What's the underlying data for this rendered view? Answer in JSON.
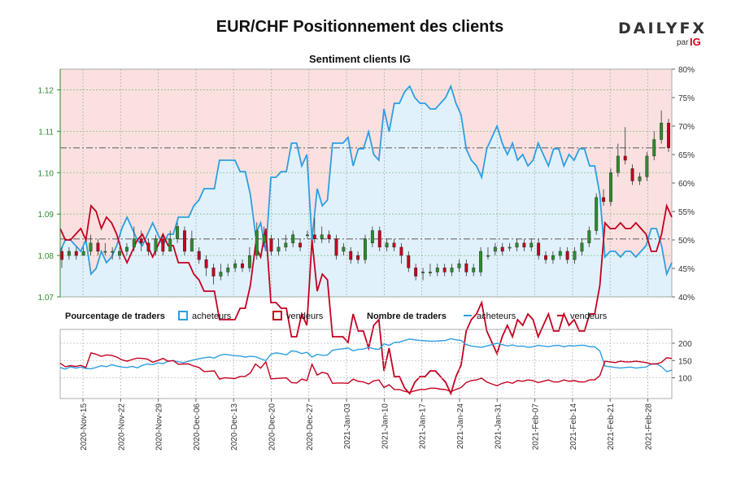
{
  "title": "EUR/CHF Positionnement des clients",
  "subtitle": "Sentiment clients IG",
  "logo": {
    "brand_main": "DAILY",
    "brand_accent": "FX",
    "by": "par",
    "ig": "IG"
  },
  "colors": {
    "buyers": "#2d9fe0",
    "sellers": "#c40020",
    "buyers_fill": "#e1f1fb",
    "sellers_fill": "#fbe0e0",
    "candle_up": "#2e8b2e",
    "candle_down": "#c40020",
    "price_axis": "#2e8b2e",
    "grid": "#7fbf7f"
  },
  "legend": {
    "pct_title": "Pourcentage de traders",
    "pct_buyers": "acheteurs",
    "pct_sellers": "vendeurs",
    "count_title": "Nombre de traders",
    "count_buyers": "acheteurs",
    "count_sellers": "vendeurs"
  },
  "chart_data": {
    "type": "line",
    "price_axis": {
      "ticks": [
        "1.07",
        "1.08",
        "1.09",
        "1.10",
        "1.11",
        "1.12"
      ],
      "range": [
        1.07,
        1.125
      ]
    },
    "pct_axis": {
      "ticks": [
        "40%",
        "45%",
        "50%",
        "55%",
        "60%",
        "65%",
        "70%",
        "75%",
        "80%"
      ],
      "range": [
        40,
        80
      ]
    },
    "count_axis": {
      "ticks": [
        "100",
        "150",
        "200"
      ],
      "range": [
        40,
        240
      ]
    },
    "date_ticks": [
      "2020-Nov-15",
      "2020-Nov-22",
      "2020-Nov-29",
      "2020-Dec-06",
      "2020-Dec-13",
      "2020-Dec-20",
      "2020-Dec-27",
      "2021-Jan-03",
      "2021-Jan-10",
      "2021-Jan-17",
      "2021-Jan-24",
      "2021-Jan-31",
      "2021-Feb-07",
      "2021-Feb-14",
      "2021-Feb-21",
      "2021-Feb-28"
    ],
    "price_reference_lines": [
      1.106,
      1.084
    ],
    "candles": [
      [
        1.081,
        1.079,
        1.082,
        1.077
      ],
      [
        1.08,
        1.081,
        1.082,
        1.079
      ],
      [
        1.081,
        1.08,
        1.082,
        1.079
      ],
      [
        1.08,
        1.081,
        1.082,
        1.08
      ],
      [
        1.081,
        1.083,
        1.085,
        1.08
      ],
      [
        1.083,
        1.081,
        1.084,
        1.08
      ],
      [
        1.081,
        1.081,
        1.083,
        1.08
      ],
      [
        1.081,
        1.081,
        1.082,
        1.079
      ],
      [
        1.08,
        1.081,
        1.082,
        1.079
      ],
      [
        1.081,
        1.082,
        1.083,
        1.08
      ],
      [
        1.082,
        1.084,
        1.087,
        1.081
      ],
      [
        1.084,
        1.083,
        1.086,
        1.081
      ],
      [
        1.083,
        1.081,
        1.084,
        1.08
      ],
      [
        1.081,
        1.084,
        1.085,
        1.08
      ],
      [
        1.084,
        1.081,
        1.085,
        1.08
      ],
      [
        1.081,
        1.084,
        1.086,
        1.081
      ],
      [
        1.084,
        1.087,
        1.088,
        1.083
      ],
      [
        1.086,
        1.081,
        1.087,
        1.08
      ],
      [
        1.081,
        1.084,
        1.086,
        1.081
      ],
      [
        1.081,
        1.079,
        1.082,
        1.078
      ],
      [
        1.079,
        1.077,
        1.08,
        1.075
      ],
      [
        1.077,
        1.075,
        1.078,
        1.073
      ],
      [
        1.075,
        1.076,
        1.078,
        1.074
      ],
      [
        1.076,
        1.077,
        1.078,
        1.075
      ],
      [
        1.077,
        1.078,
        1.079,
        1.076
      ],
      [
        1.078,
        1.077,
        1.079,
        1.076
      ],
      [
        1.077,
        1.08,
        1.082,
        1.076
      ],
      [
        1.08,
        1.086,
        1.088,
        1.079
      ],
      [
        1.083,
        1.085,
        1.087,
        1.082
      ],
      [
        1.084,
        1.081,
        1.085,
        1.08
      ],
      [
        1.081,
        1.082,
        1.084,
        1.08
      ],
      [
        1.082,
        1.083,
        1.085,
        1.081
      ],
      [
        1.083,
        1.085,
        1.086,
        1.082
      ],
      [
        1.083,
        1.082,
        1.084,
        1.081
      ],
      [
        1.085,
        1.085,
        1.086,
        1.084
      ],
      [
        1.085,
        1.084,
        1.089,
        1.083
      ],
      [
        1.084,
        1.085,
        1.087,
        1.083
      ],
      [
        1.085,
        1.084,
        1.086,
        1.083
      ],
      [
        1.084,
        1.08,
        1.085,
        1.079
      ],
      [
        1.081,
        1.082,
        1.083,
        1.08
      ],
      [
        1.081,
        1.079,
        1.082,
        1.078
      ],
      [
        1.08,
        1.079,
        1.081,
        1.078
      ],
      [
        1.079,
        1.084,
        1.085,
        1.078
      ],
      [
        1.083,
        1.086,
        1.087,
        1.082
      ],
      [
        1.086,
        1.082,
        1.087,
        1.081
      ],
      [
        1.082,
        1.083,
        1.084,
        1.081
      ],
      [
        1.083,
        1.082,
        1.084,
        1.081
      ],
      [
        1.082,
        1.08,
        1.083,
        1.078
      ],
      [
        1.08,
        1.077,
        1.081,
        1.076
      ],
      [
        1.077,
        1.075,
        1.078,
        1.074
      ],
      [
        1.076,
        1.076,
        1.077,
        1.074
      ],
      [
        1.076,
        1.076,
        1.078,
        1.075
      ],
      [
        1.076,
        1.077,
        1.078,
        1.075
      ],
      [
        1.077,
        1.076,
        1.078,
        1.075
      ],
      [
        1.076,
        1.077,
        1.078,
        1.075
      ],
      [
        1.077,
        1.078,
        1.079,
        1.076
      ],
      [
        1.078,
        1.076,
        1.079,
        1.075
      ],
      [
        1.076,
        1.077,
        1.078,
        1.075
      ],
      [
        1.076,
        1.081,
        1.082,
        1.075
      ],
      [
        1.08,
        1.08,
        1.082,
        1.079
      ],
      [
        1.081,
        1.082,
        1.083,
        1.08
      ],
      [
        1.082,
        1.081,
        1.083,
        1.08
      ],
      [
        1.082,
        1.082,
        1.083,
        1.081
      ],
      [
        1.082,
        1.083,
        1.084,
        1.081
      ],
      [
        1.083,
        1.082,
        1.084,
        1.081
      ],
      [
        1.082,
        1.083,
        1.084,
        1.081
      ],
      [
        1.083,
        1.08,
        1.084,
        1.079
      ],
      [
        1.08,
        1.079,
        1.081,
        1.078
      ],
      [
        1.079,
        1.08,
        1.081,
        1.078
      ],
      [
        1.08,
        1.081,
        1.082,
        1.079
      ],
      [
        1.081,
        1.079,
        1.082,
        1.078
      ],
      [
        1.079,
        1.081,
        1.082,
        1.078
      ],
      [
        1.081,
        1.083,
        1.084,
        1.08
      ],
      [
        1.083,
        1.086,
        1.087,
        1.082
      ],
      [
        1.086,
        1.094,
        1.095,
        1.085
      ],
      [
        1.094,
        1.093,
        1.096,
        1.092
      ],
      [
        1.093,
        1.1,
        1.101,
        1.092
      ],
      [
        1.1,
        1.104,
        1.107,
        1.099
      ],
      [
        1.104,
        1.103,
        1.111,
        1.102
      ],
      [
        1.101,
        1.098,
        1.102,
        1.097
      ],
      [
        1.098,
        1.099,
        1.1,
        1.097
      ],
      [
        1.099,
        1.104,
        1.105,
        1.098
      ],
      [
        1.104,
        1.108,
        1.11,
        1.103
      ],
      [
        1.108,
        1.112,
        1.115,
        1.107
      ],
      [
        1.112,
        1.106,
        1.113,
        1.105
      ]
    ],
    "buyers_pct": [
      48,
      50,
      50,
      49,
      48,
      50,
      44,
      45,
      48,
      46,
      47,
      49,
      52,
      54,
      52,
      50,
      49,
      51,
      53,
      51,
      49,
      51,
      51,
      54,
      54,
      54,
      56,
      57,
      59,
      59,
      59,
      64,
      64,
      64,
      64,
      62,
      62,
      58,
      51,
      53,
      48,
      61,
      61,
      62,
      62,
      67,
      67,
      63,
      65,
      50,
      59,
      56,
      57,
      67,
      67,
      67,
      68,
      63,
      66,
      66,
      69,
      65,
      64,
      73,
      69,
      74,
      74,
      76,
      77,
      75,
      74,
      74,
      73,
      73,
      74,
      75,
      77,
      74,
      72,
      66,
      64,
      63,
      61,
      66,
      68,
      70,
      67,
      65,
      67,
      64,
      65,
      63,
      64,
      67,
      65,
      63,
      66,
      66,
      63,
      65,
      64,
      66,
      66,
      63,
      63,
      58,
      47,
      48,
      48,
      47,
      48,
      48,
      47,
      48,
      49,
      52,
      52,
      49,
      44,
      46
    ],
    "sellers_pct": [
      52,
      50,
      50,
      51,
      52,
      50,
      56,
      55,
      52,
      54,
      53,
      51,
      48,
      46,
      48,
      50,
      51,
      49,
      47,
      49,
      51,
      49,
      49,
      46,
      46,
      46,
      44,
      43,
      41,
      41,
      41,
      36,
      36,
      36,
      36,
      38,
      38,
      42,
      49,
      47,
      52,
      39,
      39,
      38,
      38,
      33,
      33,
      37,
      35,
      50,
      41,
      44,
      43,
      33,
      33,
      33,
      32,
      37,
      34,
      34,
      31,
      35,
      36,
      27,
      31,
      26,
      26,
      24,
      23,
      25,
      26,
      26,
      27,
      27,
      26,
      25,
      23,
      26,
      28,
      34,
      36,
      37,
      39,
      34,
      32,
      30,
      33,
      35,
      33,
      36,
      35,
      37,
      36,
      33,
      35,
      37,
      34,
      34,
      37,
      35,
      36,
      34,
      34,
      37,
      37,
      42,
      53,
      52,
      52,
      53,
      52,
      52,
      53,
      52,
      51,
      48,
      48,
      51,
      56,
      54
    ],
    "buyers_count": [
      130,
      125,
      132,
      128,
      131,
      127,
      126,
      130,
      135,
      132,
      138,
      134,
      131,
      130,
      133,
      129,
      136,
      140,
      138,
      143,
      141,
      148,
      150,
      146,
      144,
      148,
      152,
      155,
      158,
      160,
      157,
      165,
      168,
      166,
      164,
      163,
      160,
      162,
      161,
      155,
      150,
      168,
      172,
      170,
      166,
      178,
      176,
      170,
      174,
      160,
      168,
      165,
      166,
      180,
      182,
      184,
      186,
      178,
      182,
      183,
      188,
      184,
      182,
      198,
      194,
      202,
      203,
      208,
      212,
      210,
      208,
      207,
      206,
      206,
      207,
      208,
      213,
      210,
      208,
      196,
      192,
      190,
      188,
      192,
      196,
      200,
      196,
      192,
      195,
      191,
      192,
      188,
      190,
      194,
      192,
      190,
      193,
      194,
      190,
      193,
      192,
      194,
      194,
      190,
      190,
      178,
      134,
      132,
      130,
      128,
      130,
      131,
      128,
      130,
      131,
      140,
      141,
      132,
      118,
      122
    ],
    "sellers_count": [
      142,
      132,
      135,
      133,
      136,
      130,
      172,
      168,
      162,
      166,
      165,
      160,
      152,
      148,
      153,
      157,
      156,
      154,
      145,
      150,
      156,
      148,
      150,
      139,
      140,
      140,
      134,
      130,
      118,
      119,
      120,
      96,
      100,
      99,
      98,
      104,
      104,
      114,
      140,
      128,
      146,
      97,
      98,
      99,
      100,
      86,
      85,
      96,
      92,
      139,
      108,
      116,
      112,
      84,
      85,
      85,
      84,
      96,
      90,
      88,
      82,
      91,
      94,
      72,
      80,
      66,
      66,
      61,
      58,
      62,
      66,
      66,
      70,
      70,
      67,
      66,
      60,
      66,
      72,
      86,
      92,
      94,
      99,
      88,
      82,
      77,
      84,
      88,
      84,
      92,
      90,
      94,
      92,
      86,
      90,
      94,
      88,
      88,
      94,
      90,
      92,
      88,
      88,
      94,
      94,
      106,
      148,
      146,
      144,
      148,
      146,
      146,
      148,
      146,
      144,
      140,
      140,
      145,
      158,
      156
    ]
  }
}
